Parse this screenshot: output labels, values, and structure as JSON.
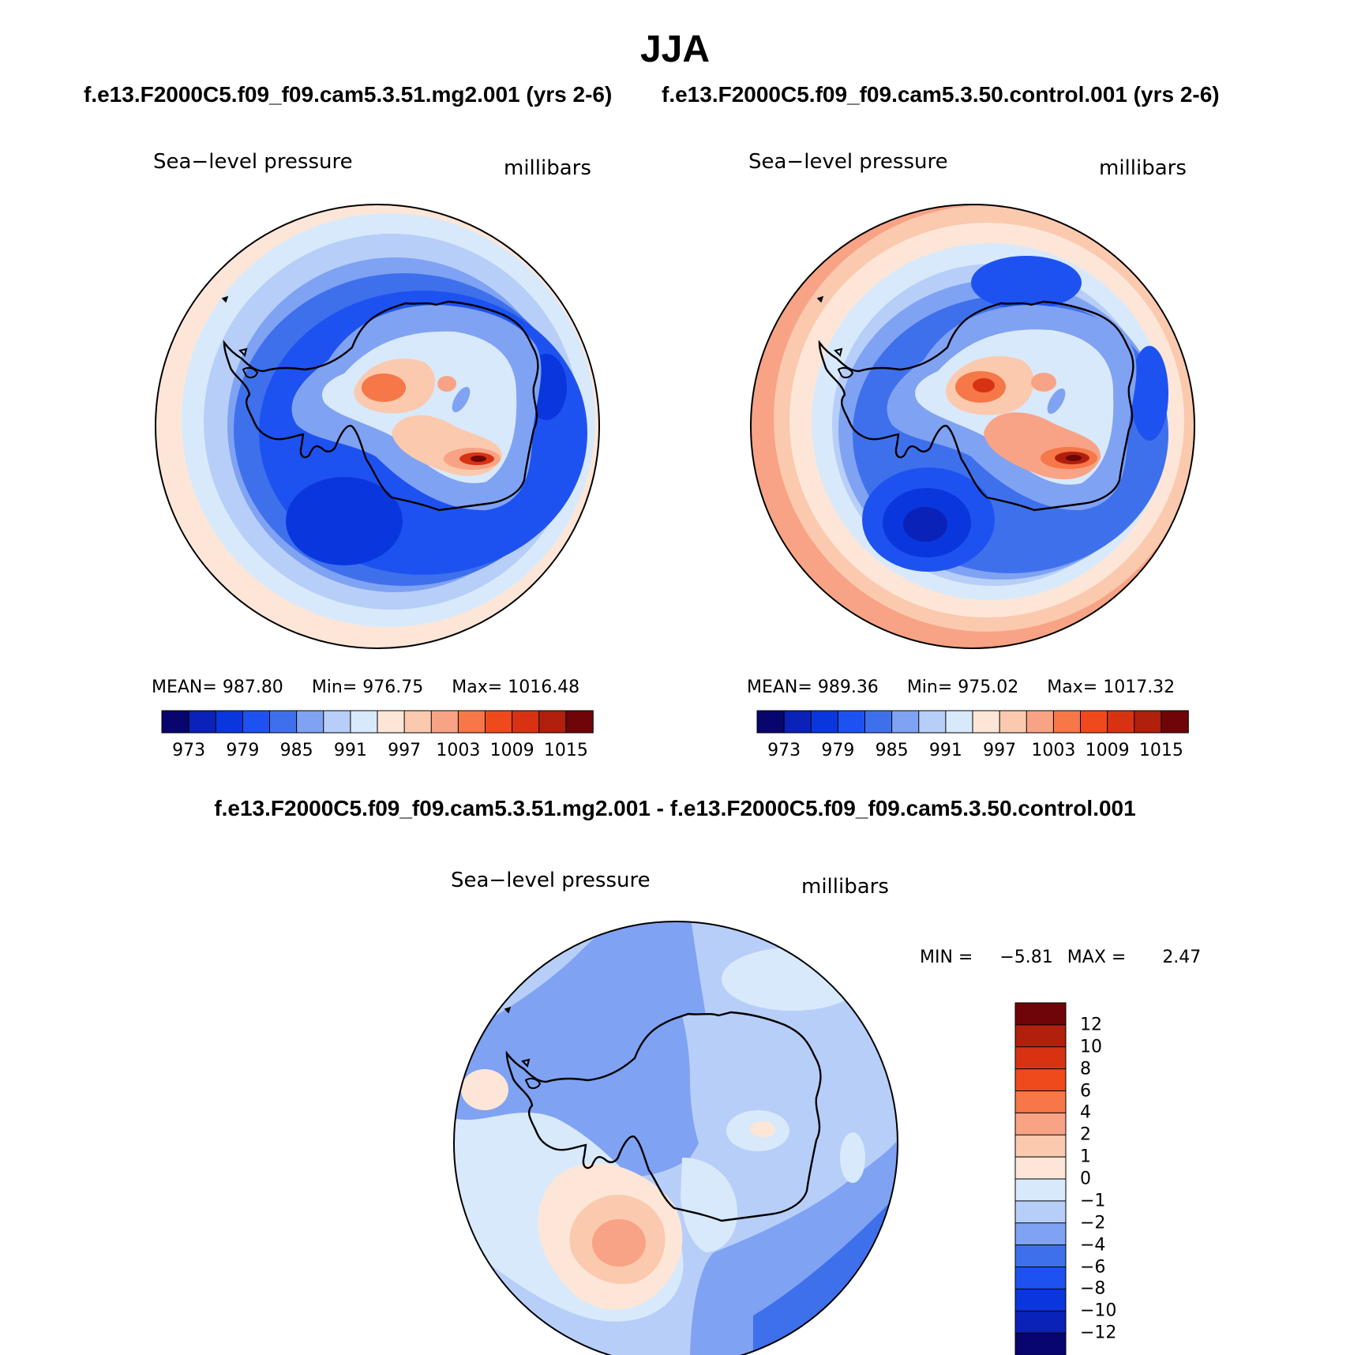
{
  "title": "JJA",
  "case_title_left": "f.e13.F2000C5.f09_f09.cam5.3.51.mg2.001 (yrs 2-6)",
  "case_title_right": "f.e13.F2000C5.f09_f09.cam5.3.50.control.001 (yrs 2-6)",
  "diff_title": "f.e13.F2000C5.f09_f09.cam5.3.51.mg2.001 - f.e13.F2000C5.f09_f09.cam5.3.50.control.001",
  "colors": {
    "main_levels": [
      "#08066e",
      "#0a22b8",
      "#0a37dd",
      "#1e52f0",
      "#3f70ec",
      "#7fa2f3",
      "#b7cef8",
      "#d8e9fb",
      "#fde6d7",
      "#fbc9ae",
      "#f8a385",
      "#f67747",
      "#ef4a1c",
      "#d73313",
      "#b0200c",
      "#6f0508"
    ],
    "diff_levels": [
      "#08066e",
      "#0a22b8",
      "#0a37dd",
      "#1e52f0",
      "#3f70ec",
      "#7fa2f3",
      "#b7cef8",
      "#d8e9fb",
      "#fde6d7",
      "#fbc9ae",
      "#f8a385",
      "#f67747",
      "#ef4a1c",
      "#d73313",
      "#b0200c",
      "#6f0508"
    ]
  },
  "panels": [
    {
      "variable": "Sea−level pressure",
      "units": "millibars",
      "mean_label": "MEAN=",
      "mean": "987.80",
      "min_label": "Min=",
      "min": "976.75",
      "max_label": "Max=",
      "max": "1016.48",
      "ticks": [
        "973",
        "979",
        "985",
        "991",
        "997",
        "1003",
        "1009",
        "1015"
      ]
    },
    {
      "variable": "Sea−level pressure",
      "units": "millibars",
      "mean_label": "MEAN=",
      "mean": "989.36",
      "min_label": "Min=",
      "min": "975.02",
      "max_label": "Max=",
      "max": "1017.32",
      "ticks": [
        "973",
        "979",
        "985",
        "991",
        "997",
        "1003",
        "1009",
        "1015"
      ]
    }
  ],
  "diff_panel": {
    "variable": "Sea−level pressure",
    "units": "millibars",
    "min_label": "MIN =",
    "min": "−5.81",
    "max_label": "MAX =",
    "max": "2.47",
    "ticks": [
      "12",
      "10",
      "8",
      "6",
      "4",
      "2",
      "1",
      "0",
      "−1",
      "−2",
      "−4",
      "−6",
      "−8",
      "−10",
      "−12"
    ]
  }
}
